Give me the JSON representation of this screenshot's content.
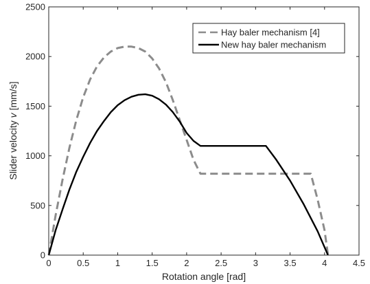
{
  "chart_data": {
    "type": "line",
    "xlabel": "Rotation angle [rad]",
    "ylabel_prefix": "Slider velocity ",
    "ylabel_var": "v",
    "ylabel_suffix": " [mm/s]",
    "xlim": [
      0,
      4.5
    ],
    "ylim": [
      0,
      2500
    ],
    "xticks": [
      0,
      0.5,
      1,
      1.5,
      2,
      2.5,
      3,
      3.5,
      4,
      4.5
    ],
    "xtick_labels": [
      "0",
      "0.5",
      "1",
      "1.5",
      "2",
      "2.5",
      "3",
      "3.5",
      "4",
      "4.5"
    ],
    "yticks": [
      0,
      500,
      1000,
      1500,
      2000,
      2500
    ],
    "ytick_labels": [
      "0",
      "500",
      "1000",
      "1500",
      "2000",
      "2500"
    ],
    "grid": false,
    "legend_position": "top-right",
    "series": [
      {
        "name": "Hay baler mechanism [4]",
        "color": "#8c8c8c",
        "style": "dashed",
        "x": [
          0,
          0.1,
          0.2,
          0.3,
          0.4,
          0.5,
          0.6,
          0.7,
          0.8,
          0.9,
          1.0,
          1.1,
          1.2,
          1.3,
          1.4,
          1.5,
          1.6,
          1.7,
          1.8,
          1.9,
          2.0,
          2.1,
          2.2,
          2.5,
          3.0,
          3.5,
          3.8,
          3.9,
          4.0,
          4.05
        ],
        "y": [
          0,
          400,
          760,
          1080,
          1360,
          1590,
          1770,
          1900,
          1990,
          2050,
          2085,
          2100,
          2100,
          2085,
          2050,
          1980,
          1880,
          1740,
          1560,
          1360,
          1160,
          960,
          820,
          820,
          820,
          820,
          820,
          560,
          250,
          0
        ]
      },
      {
        "name": "New hay baler mechanism",
        "color": "#000000",
        "style": "solid",
        "x": [
          0,
          0.1,
          0.2,
          0.3,
          0.4,
          0.5,
          0.6,
          0.7,
          0.8,
          0.9,
          1.0,
          1.1,
          1.2,
          1.3,
          1.4,
          1.5,
          1.6,
          1.7,
          1.8,
          1.9,
          2.0,
          2.1,
          2.2,
          2.5,
          3.0,
          3.15,
          3.3,
          3.5,
          3.7,
          3.9,
          4.05
        ],
        "y": [
          0,
          250,
          460,
          660,
          840,
          990,
          1130,
          1250,
          1350,
          1440,
          1510,
          1560,
          1595,
          1615,
          1620,
          1605,
          1570,
          1515,
          1440,
          1345,
          1230,
          1150,
          1100,
          1100,
          1100,
          1100,
          960,
          750,
          510,
          240,
          0
        ]
      }
    ]
  }
}
